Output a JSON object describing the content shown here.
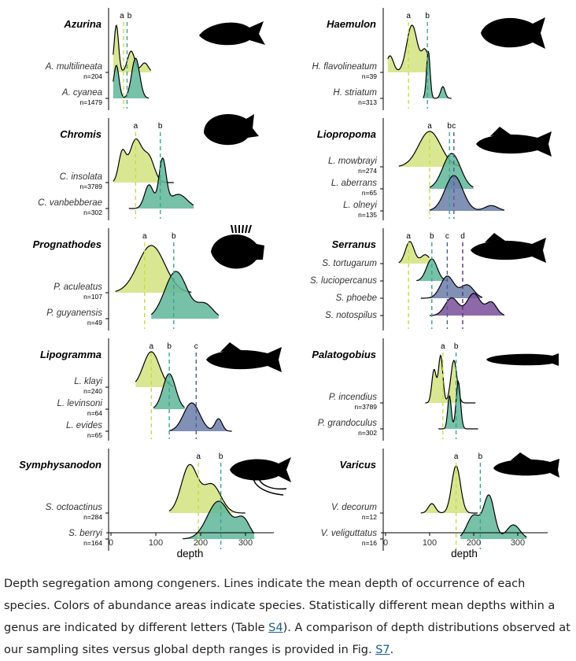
{
  "x_axis": {
    "label": "depth",
    "ticks": [
      "0",
      "100",
      "200",
      "300"
    ],
    "tick_values": [
      0,
      100,
      200,
      300
    ]
  },
  "colors": {
    "a": "#d4e37f",
    "b": "#5fb69a",
    "c": "#6b7ca8",
    "d": "#7a4f9a",
    "line_a": "#c5dc45",
    "line_b": "#3aa58d",
    "line_c": "#4a5d99",
    "line_d": "#5d2d80"
  },
  "caption": {
    "text_1": "Depth segregation among congeners. Lines indicate the mean depth of occurrence of each species. Colors of abundance areas indicate species. Statistically different mean depths within a genus are indicated by different letters (Table ",
    "link_1": "S4",
    "text_2": "). A comparison of depth distributions observed at our sampling sites versus global depth ranges is provided in Fig. ",
    "link_2": "S7",
    "text_3": "."
  },
  "chart_data": [
    {
      "type": "area",
      "genus": "Azurina",
      "column": "left",
      "letters": [
        "a",
        "b"
      ],
      "species": [
        {
          "name": "A. multilineata",
          "n": "n=204",
          "mean": 28,
          "peaks": [
            [
              12,
              1.0,
              5
            ],
            [
              45,
              0.45,
              8
            ],
            [
              75,
              0.2,
              8
            ]
          ],
          "range": [
            5,
            90
          ]
        },
        {
          "name": "A. cyanea",
          "n": "n=1479",
          "mean": 36,
          "peaks": [
            [
              12,
              0.7,
              6
            ],
            [
              55,
              0.85,
              9
            ]
          ],
          "range": [
            5,
            85
          ]
        }
      ]
    },
    {
      "type": "area",
      "genus": "Chromis",
      "column": "left",
      "letters": [
        "a",
        "b"
      ],
      "species": [
        {
          "name": "C. insolata",
          "n": "n=3789",
          "mean": 55,
          "peaks": [
            [
              25,
              0.6,
              8
            ],
            [
              55,
              0.9,
              14
            ],
            [
              85,
              0.5,
              12
            ]
          ],
          "range": [
            5,
            140
          ]
        },
        {
          "name": "C. vanbebberae",
          "n": "n=302",
          "mean": 110,
          "peaks": [
            [
              85,
              0.5,
              10
            ],
            [
              115,
              1.0,
              8
            ],
            [
              150,
              0.3,
              20
            ]
          ],
          "range": [
            40,
            185
          ]
        }
      ]
    },
    {
      "type": "area",
      "genus": "Prognathodes",
      "column": "left",
      "letters": [
        "a",
        "b"
      ],
      "species": [
        {
          "name": "P. aculeatus",
          "n": "n=107",
          "mean": 75,
          "peaks": [
            [
              90,
              1.0,
              30
            ]
          ],
          "range": [
            10,
            180
          ]
        },
        {
          "name": "P. guyanensis",
          "n": "n=49",
          "mean": 140,
          "peaks": [
            [
              145,
              1.0,
              25
            ],
            [
              210,
              0.3,
              18
            ]
          ],
          "range": [
            90,
            240
          ]
        }
      ]
    },
    {
      "type": "area",
      "genus": "Lipogramma",
      "column": "left",
      "letters": [
        "a",
        "b",
        "c"
      ],
      "species": [
        {
          "name": "L. klayi",
          "n": "n=240",
          "mean": 90,
          "peaks": [
            [
              90,
              1.0,
              18
            ]
          ],
          "range": [
            55,
            140
          ]
        },
        {
          "name": "L. levinsoni",
          "n": "n=64",
          "mean": 130,
          "peaks": [
            [
              130,
              1.0,
              14
            ]
          ],
          "range": [
            95,
            165
          ]
        },
        {
          "name": "L. evides",
          "n": "n=65",
          "mean": 190,
          "peaks": [
            [
              180,
              0.8,
              18
            ],
            [
              240,
              0.35,
              8
            ]
          ],
          "range": [
            130,
            270
          ]
        }
      ]
    },
    {
      "type": "area",
      "genus": "Symphysanodon",
      "column": "left",
      "letters": [
        "a",
        "b"
      ],
      "species": [
        {
          "name": "S. octoactinus",
          "n": "n=284",
          "mean": 195,
          "peaks": [
            [
              175,
              1.0,
              18
            ],
            [
              225,
              0.6,
              20
            ]
          ],
          "range": [
            130,
            300
          ]
        },
        {
          "name": "S. berryi",
          "n": "n=164",
          "mean": 245,
          "peaks": [
            [
              240,
              0.8,
              25
            ],
            [
              295,
              0.4,
              15
            ]
          ],
          "range": [
            160,
            320
          ]
        }
      ]
    },
    {
      "type": "area",
      "genus": "Haemulon",
      "column": "right",
      "letters": [
        "a",
        "b"
      ],
      "species": [
        {
          "name": "H. flavolineatum",
          "n": "n=39",
          "mean": 52,
          "peaks": [
            [
              10,
              0.35,
              8
            ],
            [
              60,
              1.0,
              12
            ],
            [
              90,
              0.45,
              8
            ]
          ],
          "range": [
            5,
            100
          ]
        },
        {
          "name": "H. striatum",
          "n": "n=313",
          "mean": 95,
          "peaks": [
            [
              97,
              1.0,
              4
            ],
            [
              130,
              0.25,
              5
            ]
          ],
          "range": [
            85,
            150
          ]
        }
      ]
    },
    {
      "type": "area",
      "genus": "Liopropoma",
      "column": "right",
      "letters": [
        "a",
        "b",
        "c"
      ],
      "species": [
        {
          "name": "L. mowbrayi",
          "n": "n=274",
          "mean": 100,
          "peaks": [
            [
              100,
              1.0,
              25
            ]
          ],
          "range": [
            30,
            170
          ]
        },
        {
          "name": "L. aberrans",
          "n": "n=65",
          "mean": 145,
          "peaks": [
            [
              150,
              1.0,
              20
            ]
          ],
          "range": [
            100,
            200
          ]
        },
        {
          "name": "L. olneyi",
          "n": "n=135",
          "mean": 155,
          "peaks": [
            [
              155,
              1.0,
              20
            ],
            [
              240,
              0.15,
              15
            ]
          ],
          "range": [
            100,
            270
          ]
        }
      ]
    },
    {
      "type": "area",
      "genus": "Serranus",
      "column": "right",
      "letters": [
        "a",
        "b",
        "c",
        "d"
      ],
      "species": [
        {
          "name": "S. tortugarum",
          "n": "",
          "mean": 52,
          "peaks": [
            [
              55,
              1.0,
              10
            ],
            [
              90,
              0.4,
              10
            ]
          ],
          "range": [
            30,
            100
          ]
        },
        {
          "name": "S. luciopercanus",
          "n": "",
          "mean": 105,
          "peaks": [
            [
              105,
              1.0,
              12
            ]
          ],
          "range": [
            70,
            140
          ]
        },
        {
          "name": "S. phoebe",
          "n": "",
          "mean": 140,
          "peaks": [
            [
              140,
              1.0,
              15
            ],
            [
              185,
              0.6,
              15
            ]
          ],
          "range": [
            80,
            220
          ]
        },
        {
          "name": "S. notospilus",
          "n": "",
          "mean": 175,
          "peaks": [
            [
              150,
              0.8,
              15
            ],
            [
              200,
              1.0,
              15
            ],
            [
              240,
              0.6,
              12
            ]
          ],
          "range": [
            100,
            270
          ]
        }
      ]
    },
    {
      "type": "area",
      "genus": "Palatogobius",
      "column": "right",
      "letters": [
        "a",
        "b"
      ],
      "species": [
        {
          "name": "P. incendius",
          "n": "n=3789",
          "mean": 130,
          "peaks": [
            [
              110,
              0.7,
              5
            ],
            [
              125,
              1.0,
              5
            ],
            [
              155,
              0.9,
              7
            ]
          ],
          "range": [
            90,
            205
          ]
        },
        {
          "name": "P. grandoculus",
          "n": "n=302",
          "mean": 160,
          "peaks": [
            [
              145,
              0.7,
              4
            ],
            [
              165,
              1.0,
              5
            ]
          ],
          "range": [
            120,
            210
          ]
        }
      ]
    },
    {
      "type": "area",
      "genus": "Varicus",
      "column": "right",
      "letters": [
        "a",
        "b"
      ],
      "species": [
        {
          "name": "V. decorum",
          "n": "n=12",
          "mean": 160,
          "peaks": [
            [
              160,
              1.0,
              10
            ],
            [
              105,
              0.2,
              8
            ]
          ],
          "range": [
            80,
            210
          ]
        },
        {
          "name": "V. veliguttatus",
          "n": "n=16",
          "mean": 215,
          "peaks": [
            [
              200,
              0.5,
              15
            ],
            [
              235,
              0.9,
              12
            ],
            [
              290,
              0.3,
              15
            ]
          ],
          "range": [
            170,
            320
          ]
        }
      ]
    }
  ]
}
